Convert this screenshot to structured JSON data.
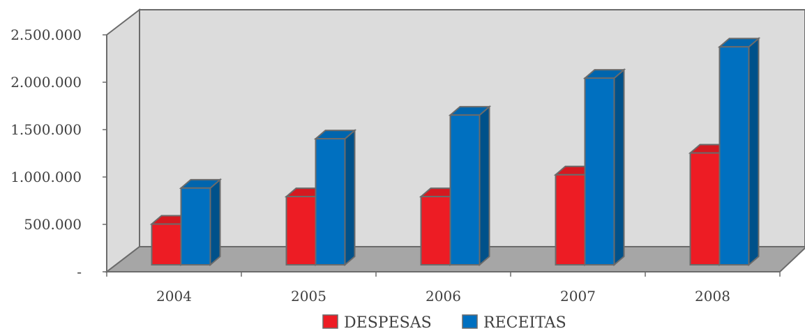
{
  "chart_data": {
    "type": "bar",
    "subtype": "3d-clustered-column",
    "categories": [
      "2004",
      "2005",
      "2006",
      "2007",
      "2008"
    ],
    "series": [
      {
        "name": "DESPESAS",
        "color": "#ed1c24",
        "values": [
          430000,
          720000,
          720000,
          950000,
          1180000
        ]
      },
      {
        "name": "RECEITAS",
        "color": "#0070c0",
        "values": [
          810000,
          1330000,
          1580000,
          1970000,
          2300000
        ]
      }
    ],
    "y_ticks": [
      {
        "value": 0,
        "label": "-"
      },
      {
        "value": 500000,
        "label": "500.000"
      },
      {
        "value": 1000000,
        "label": "1.000.000"
      },
      {
        "value": 1500000,
        "label": "1.500.000"
      },
      {
        "value": 2000000,
        "label": "2.000.000"
      },
      {
        "value": 2500000,
        "label": "2.500.000"
      }
    ],
    "ylim": [
      0,
      2500000
    ],
    "grid": false,
    "legend_position": "bottom",
    "colors": {
      "wall": "#dcdcdc",
      "floor": "#a6a6a6",
      "outline": "#6b6b6b"
    }
  }
}
